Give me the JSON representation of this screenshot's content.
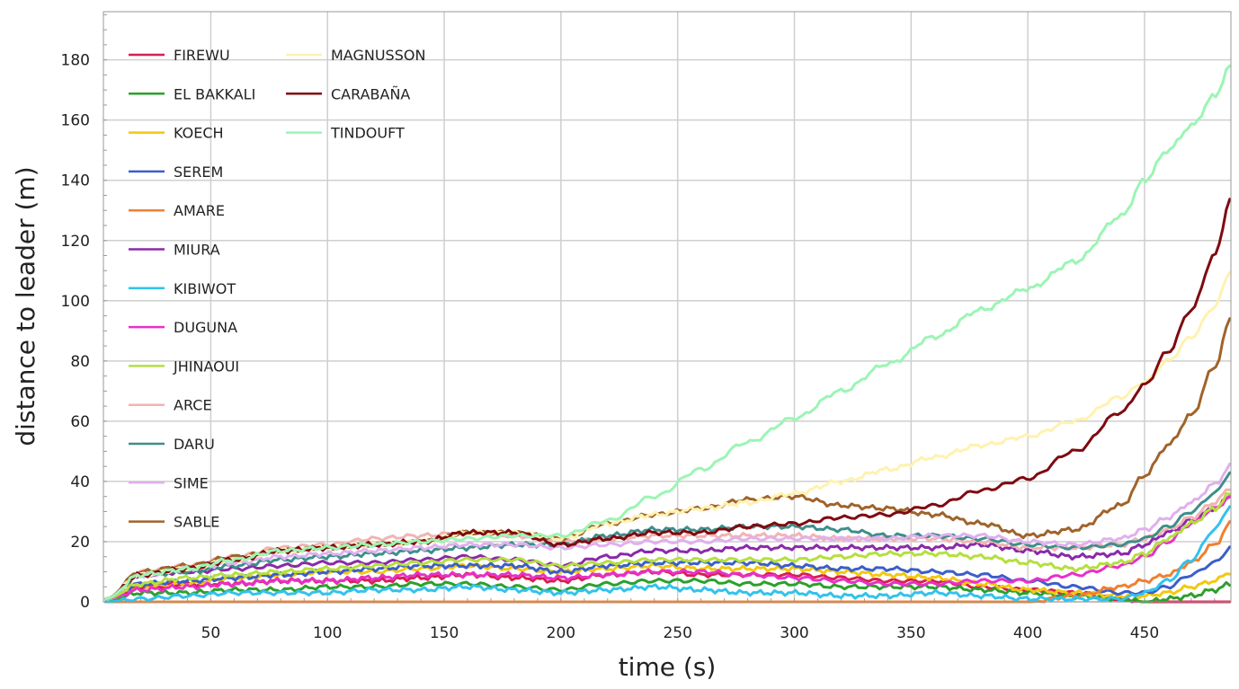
{
  "chart_data": {
    "type": "line",
    "title": "",
    "xlabel": "time (s)",
    "ylabel": "distance to leader (m)",
    "xlim": [
      4,
      487
    ],
    "ylim": [
      0,
      196
    ],
    "x_ticks": [
      50,
      100,
      150,
      200,
      250,
      300,
      350,
      400,
      450
    ],
    "y_ticks": [
      0,
      20,
      40,
      60,
      80,
      100,
      120,
      140,
      160,
      180
    ],
    "grid": true,
    "legend_position": "top-left",
    "x": [
      5,
      20,
      40,
      60,
      80,
      100,
      120,
      140,
      160,
      180,
      200,
      220,
      240,
      260,
      280,
      300,
      320,
      340,
      360,
      380,
      400,
      420,
      440,
      450,
      460,
      470,
      480,
      487
    ],
    "series": [
      {
        "name": "FIREWU",
        "color": "#d62050",
        "values": [
          1,
          5,
          6,
          6,
          7,
          7,
          7,
          8,
          9,
          8,
          7,
          9,
          10,
          9,
          9,
          9,
          8,
          7,
          7,
          5,
          4,
          3,
          1,
          0,
          0,
          0,
          0,
          0
        ]
      },
      {
        "name": "EL BAKKALI",
        "color": "#2ca02c",
        "values": [
          0,
          3,
          3,
          4,
          4,
          5,
          5,
          6,
          6,
          5,
          4,
          6,
          7,
          7,
          6,
          6,
          5,
          5,
          5,
          4,
          3,
          2,
          1,
          0,
          1,
          2,
          4,
          6
        ]
      },
      {
        "name": "KOECH",
        "color": "#f2c80f",
        "values": [
          1,
          5,
          6,
          8,
          9,
          10,
          10,
          11,
          12,
          11,
          10,
          11,
          12,
          11,
          11,
          11,
          10,
          9,
          8,
          6,
          4,
          3,
          2,
          2,
          3,
          5,
          7,
          10
        ]
      },
      {
        "name": "SEREM",
        "color": "#3b5fc9",
        "values": [
          1,
          6,
          7,
          8,
          9,
          10,
          11,
          12,
          12,
          12,
          10,
          12,
          13,
          13,
          13,
          12,
          11,
          11,
          10,
          9,
          7,
          5,
          3,
          3,
          5,
          9,
          13,
          18
        ]
      },
      {
        "name": "AMARE",
        "color": "#f08030",
        "values": [
          0,
          0,
          0,
          0,
          0,
          0,
          0,
          0,
          0,
          0,
          0,
          0,
          0,
          0,
          0,
          0,
          0,
          0,
          0,
          0,
          0,
          2,
          5,
          7,
          9,
          13,
          19,
          26
        ]
      },
      {
        "name": "MIURA",
        "color": "#8a2aa8",
        "values": [
          1,
          9,
          10,
          11,
          12,
          13,
          13,
          14,
          15,
          14,
          12,
          15,
          17,
          17,
          18,
          18,
          18,
          18,
          18,
          19,
          17,
          15,
          16,
          19,
          23,
          27,
          31,
          35
        ]
      },
      {
        "name": "KIBIWOT",
        "color": "#33c2ec",
        "values": [
          0,
          1,
          2,
          3,
          3,
          3,
          4,
          4,
          5,
          4,
          3,
          4,
          5,
          4,
          3,
          3,
          2,
          2,
          3,
          2,
          1,
          1,
          1,
          3,
          7,
          14,
          24,
          32
        ]
      },
      {
        "name": "DUGUNA",
        "color": "#e830c8",
        "values": [
          1,
          4,
          5,
          6,
          7,
          7,
          8,
          9,
          9,
          9,
          8,
          9,
          10,
          10,
          9,
          8,
          7,
          6,
          6,
          7,
          7,
          9,
          12,
          15,
          20,
          26,
          31,
          35
        ]
      },
      {
        "name": "JHINAOUI",
        "color": "#b5df3e",
        "values": [
          1,
          6,
          8,
          9,
          10,
          11,
          12,
          13,
          14,
          14,
          12,
          13,
          14,
          14,
          14,
          14,
          15,
          16,
          16,
          15,
          13,
          11,
          13,
          16,
          21,
          26,
          31,
          36
        ]
      },
      {
        "name": "ARCE",
        "color": "#f2b3b3",
        "values": [
          1,
          10,
          12,
          15,
          18,
          19,
          21,
          22,
          23,
          22,
          20,
          21,
          22,
          22,
          22,
          22,
          21,
          21,
          21,
          20,
          18,
          18,
          19,
          21,
          24,
          28,
          33,
          38
        ]
      },
      {
        "name": "DARU",
        "color": "#3d8f8a",
        "values": [
          1,
          9,
          10,
          12,
          14,
          15,
          16,
          17,
          18,
          19,
          19,
          22,
          24,
          24,
          25,
          25,
          24,
          22,
          22,
          21,
          19,
          18,
          19,
          21,
          25,
          30,
          36,
          43
        ]
      },
      {
        "name": "SIME",
        "color": "#e0b0ee",
        "values": [
          1,
          9,
          11,
          13,
          15,
          16,
          17,
          18,
          19,
          19,
          18,
          19,
          20,
          20,
          21,
          21,
          21,
          21,
          22,
          22,
          20,
          19,
          21,
          24,
          28,
          33,
          39,
          45
        ]
      },
      {
        "name": "SABLE",
        "color": "#a0632a",
        "values": [
          1,
          10,
          12,
          15,
          17,
          18,
          19,
          20,
          23,
          23,
          21,
          26,
          29,
          31,
          34,
          35,
          32,
          31,
          29,
          26,
          22,
          24,
          32,
          42,
          52,
          62,
          78,
          94
        ]
      },
      {
        "name": "MAGNUSSON",
        "color": "#fff2b0",
        "values": [
          1,
          9,
          11,
          14,
          17,
          18,
          19,
          20,
          23,
          23,
          21,
          26,
          29,
          31,
          33,
          36,
          40,
          44,
          48,
          52,
          55,
          60,
          68,
          73,
          80,
          88,
          98,
          110
        ]
      },
      {
        "name": "CARABAÑA",
        "color": "#7f0a10",
        "values": [
          1,
          9,
          11,
          14,
          17,
          18,
          19,
          20,
          23,
          23,
          19,
          21,
          23,
          23,
          25,
          26,
          28,
          29,
          32,
          37,
          41,
          50,
          63,
          72,
          83,
          97,
          115,
          134
        ]
      },
      {
        "name": "TINDOUFT",
        "color": "#9bf5b4",
        "values": [
          1,
          9,
          11,
          14,
          17,
          18,
          19,
          20,
          21,
          22,
          22,
          27,
          35,
          44,
          53,
          61,
          70,
          79,
          88,
          97,
          104,
          113,
          128,
          140,
          150,
          158,
          168,
          178
        ]
      }
    ]
  }
}
